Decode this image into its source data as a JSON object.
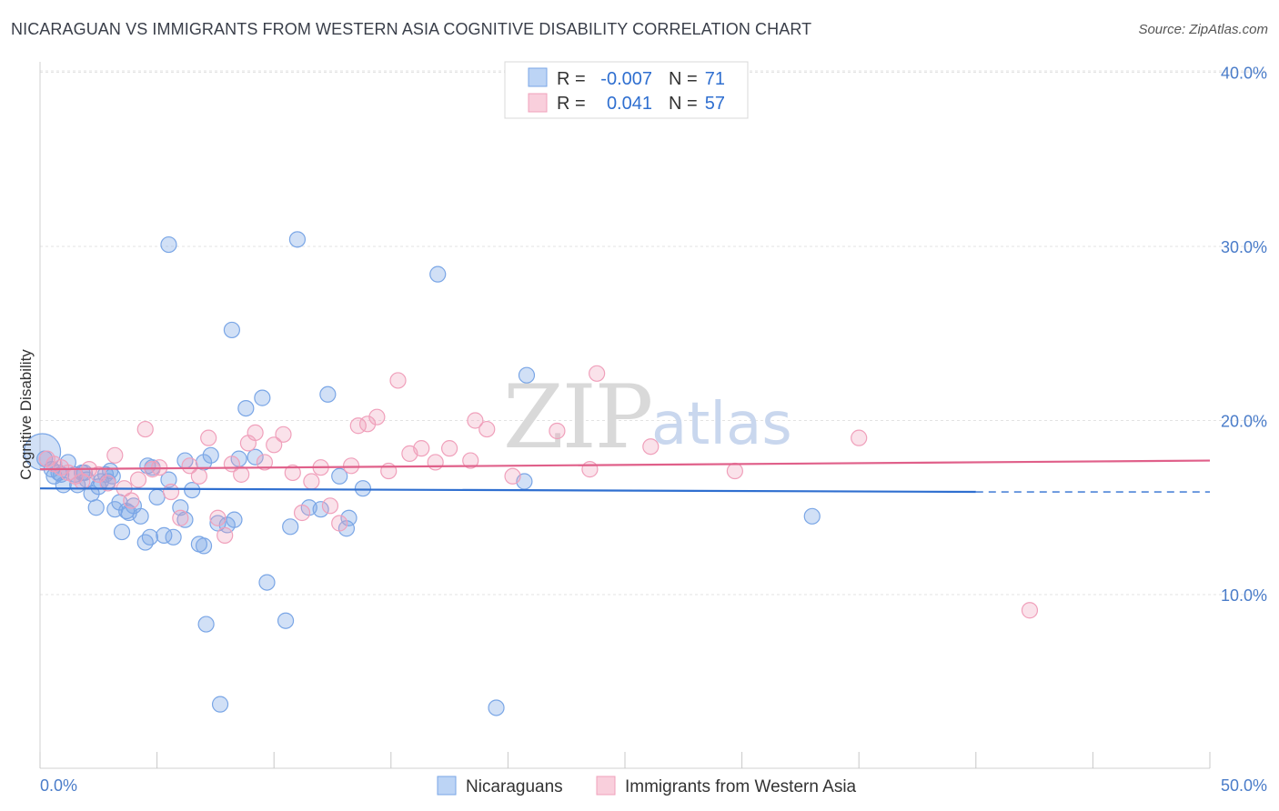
{
  "title": "NICARAGUAN VS IMMIGRANTS FROM WESTERN ASIA COGNITIVE DISABILITY CORRELATION CHART",
  "source": "Source: ZipAtlas.com",
  "watermark": {
    "zip": "ZIP",
    "atlas": "atlas"
  },
  "legend": {
    "r_label": "R =",
    "n_label": "N =",
    "items": [
      {
        "r": "-0.007",
        "n": "71"
      },
      {
        "r": "0.041",
        "n": "57"
      }
    ]
  },
  "chart_data": {
    "type": "scatter",
    "title": "NICARAGUAN VS IMMIGRANTS FROM WESTERN ASIA COGNITIVE DISABILITY CORRELATION CHART",
    "xlabel": "",
    "ylabel": "Cognitive Disability",
    "xlim": [
      0,
      50
    ],
    "ylim": [
      0,
      41
    ],
    "x_tick_labels": [
      {
        "value": 0,
        "label": "0.0%"
      },
      {
        "value": 50,
        "label": "50.0%"
      }
    ],
    "y_tick_labels": [
      {
        "value": 10,
        "label": "10.0%"
      },
      {
        "value": 20,
        "label": "20.0%"
      },
      {
        "value": 30,
        "label": "30.0%"
      },
      {
        "value": 40,
        "label": "40.0%"
      }
    ],
    "colors": {
      "blue": "#7aa6e6",
      "blue_line": "#2f6fd0",
      "pink": "#f0a0bb",
      "pink_line": "#e0608a"
    },
    "series": [
      {
        "name": "Nicaraguans",
        "color": "#7aa6e6",
        "trend": {
          "x0": 0,
          "y0": 16.1,
          "x1": 40,
          "y1": 15.9,
          "dash_to": 50,
          "dash_y": 15.9
        },
        "points": [
          [
            0.2,
            17.8
          ],
          [
            0.5,
            17.2
          ],
          [
            0.6,
            16.8
          ],
          [
            0.8,
            17.0
          ],
          [
            1.0,
            16.3
          ],
          [
            1.2,
            17.6
          ],
          [
            1.5,
            16.9
          ],
          [
            1.6,
            16.3
          ],
          [
            1.8,
            17.0
          ],
          [
            2.0,
            16.6
          ],
          [
            2.2,
            15.8
          ],
          [
            2.4,
            15.0
          ],
          [
            2.6,
            16.5
          ],
          [
            2.8,
            16.9
          ],
          [
            3.0,
            17.1
          ],
          [
            3.2,
            14.9
          ],
          [
            3.4,
            15.3
          ],
          [
            3.5,
            13.6
          ],
          [
            3.7,
            14.8
          ],
          [
            4.0,
            15.1
          ],
          [
            4.3,
            14.5
          ],
          [
            4.5,
            13.0
          ],
          [
            4.7,
            13.3
          ],
          [
            4.8,
            17.3
          ],
          [
            5.0,
            15.6
          ],
          [
            5.3,
            13.4
          ],
          [
            5.5,
            16.6
          ],
          [
            5.7,
            13.3
          ],
          [
            6.0,
            15.0
          ],
          [
            6.2,
            14.3
          ],
          [
            6.5,
            16.0
          ],
          [
            6.8,
            12.9
          ],
          [
            7.0,
            12.8
          ],
          [
            7.3,
            18.0
          ],
          [
            7.6,
            14.1
          ],
          [
            8.0,
            14.0
          ],
          [
            8.3,
            14.3
          ],
          [
            8.5,
            17.8
          ],
          [
            8.8,
            20.7
          ],
          [
            9.2,
            17.9
          ],
          [
            9.5,
            21.3
          ],
          [
            9.7,
            10.7
          ],
          [
            10.5,
            8.5
          ],
          [
            10.7,
            13.9
          ],
          [
            11.0,
            30.4
          ],
          [
            11.5,
            15.0
          ],
          [
            12.0,
            14.9
          ],
          [
            12.3,
            21.5
          ],
          [
            12.8,
            16.8
          ],
          [
            13.1,
            13.8
          ],
          [
            13.2,
            14.4
          ],
          [
            13.8,
            16.1
          ],
          [
            5.5,
            30.1
          ],
          [
            8.2,
            25.2
          ],
          [
            17.0,
            28.4
          ],
          [
            20.8,
            22.6
          ],
          [
            20.7,
            16.5
          ],
          [
            33.0,
            14.5
          ],
          [
            7.1,
            8.3
          ],
          [
            7.7,
            3.7
          ],
          [
            19.5,
            3.5
          ],
          [
            7.0,
            17.6
          ],
          [
            6.2,
            17.7
          ],
          [
            1.9,
            17.0
          ],
          [
            0.9,
            16.9
          ],
          [
            2.5,
            16.2
          ],
          [
            4.6,
            17.4
          ],
          [
            3.1,
            16.8
          ],
          [
            2.9,
            16.5
          ],
          [
            3.8,
            14.7
          ],
          [
            0.1,
            18.2
          ]
        ]
      },
      {
        "name": "Immigrants from Western Asia",
        "color": "#f0a0bb",
        "trend": {
          "x0": 0,
          "y0": 17.2,
          "x1": 50,
          "y1": 17.7
        },
        "points": [
          [
            0.3,
            17.8
          ],
          [
            0.6,
            17.5
          ],
          [
            0.9,
            17.3
          ],
          [
            1.2,
            17.0
          ],
          [
            1.5,
            16.8
          ],
          [
            1.8,
            16.5
          ],
          [
            2.1,
            17.2
          ],
          [
            2.5,
            16.9
          ],
          [
            2.9,
            16.4
          ],
          [
            3.2,
            18.0
          ],
          [
            3.6,
            16.1
          ],
          [
            3.9,
            15.4
          ],
          [
            4.2,
            16.6
          ],
          [
            4.5,
            19.5
          ],
          [
            4.8,
            17.2
          ],
          [
            5.1,
            17.3
          ],
          [
            5.6,
            15.9
          ],
          [
            6.0,
            14.4
          ],
          [
            6.4,
            17.4
          ],
          [
            6.8,
            16.8
          ],
          [
            7.2,
            19.0
          ],
          [
            7.6,
            14.4
          ],
          [
            7.9,
            13.4
          ],
          [
            8.2,
            17.5
          ],
          [
            8.6,
            16.9
          ],
          [
            8.9,
            18.7
          ],
          [
            9.2,
            19.3
          ],
          [
            9.6,
            17.6
          ],
          [
            10.0,
            18.6
          ],
          [
            10.4,
            19.2
          ],
          [
            10.8,
            17.0
          ],
          [
            11.2,
            14.7
          ],
          [
            11.6,
            16.5
          ],
          [
            12.0,
            17.3
          ],
          [
            12.4,
            15.1
          ],
          [
            12.8,
            14.1
          ],
          [
            13.3,
            17.4
          ],
          [
            13.6,
            19.7
          ],
          [
            14.0,
            19.8
          ],
          [
            14.4,
            20.2
          ],
          [
            14.9,
            17.1
          ],
          [
            15.3,
            22.3
          ],
          [
            15.8,
            18.1
          ],
          [
            16.3,
            18.4
          ],
          [
            16.9,
            17.6
          ],
          [
            17.5,
            18.4
          ],
          [
            18.4,
            17.7
          ],
          [
            18.6,
            20.0
          ],
          [
            19.1,
            19.5
          ],
          [
            22.1,
            19.4
          ],
          [
            23.5,
            17.2
          ],
          [
            23.8,
            22.7
          ],
          [
            26.1,
            18.5
          ],
          [
            29.7,
            17.1
          ],
          [
            35.0,
            19.0
          ],
          [
            42.3,
            9.1
          ],
          [
            20.2,
            16.8
          ]
        ]
      }
    ]
  },
  "bottom_legend": [
    "Nicaraguans",
    "Immigrants from Western Asia"
  ]
}
